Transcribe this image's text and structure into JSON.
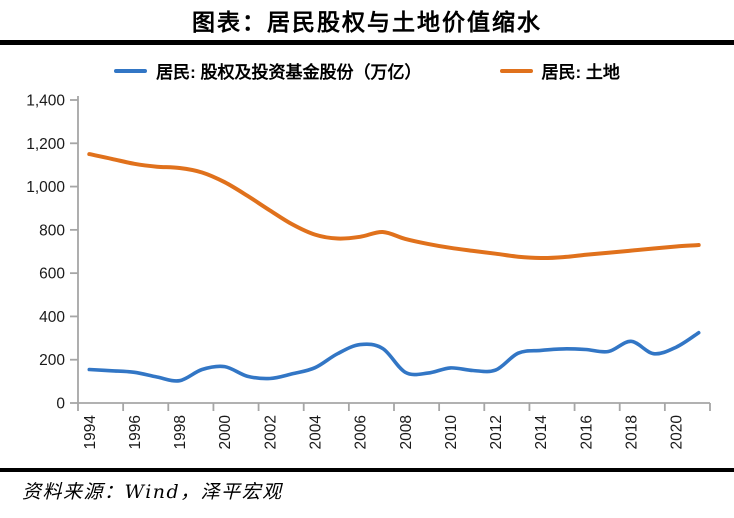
{
  "title": "图表：居民股权与土地价值缩水",
  "source": "资料来源：Wind，泽平宏观",
  "legend": [
    {
      "label": "居民: 股权及投资基金股份（万亿）",
      "color": "#3276C5"
    },
    {
      "label": "居民: 土地",
      "color": "#E0711C"
    }
  ],
  "colors": {
    "equity_line": "#3276C5",
    "land_line": "#E0711C",
    "axis": "#A6A6A6",
    "tick_text": "#1A1A1A",
    "divider": "#000000"
  },
  "chart_data": {
    "type": "line",
    "smoothed": true,
    "grid": false,
    "legend_position": "top",
    "x": [
      1994,
      1995,
      1996,
      1997,
      1998,
      1999,
      2000,
      2001,
      2002,
      2003,
      2004,
      2005,
      2006,
      2007,
      2008,
      2009,
      2010,
      2011,
      2012,
      2013,
      2014,
      2015,
      2016,
      2017,
      2018,
      2019,
      2020,
      2021
    ],
    "series": [
      {
        "name": "居民: 股权及投资基金股份（万亿）",
        "color": "#3276C5",
        "values": [
          155,
          149,
          142,
          120,
          103,
          155,
          168,
          124,
          113,
          135,
          163,
          228,
          270,
          252,
          142,
          138,
          162,
          150,
          152,
          230,
          243,
          250,
          247,
          238,
          285,
          228,
          258,
          325
        ]
      },
      {
        "name": "居民: 土地",
        "color": "#E0711C",
        "values": [
          1150,
          1128,
          1105,
          1092,
          1086,
          1065,
          1020,
          958,
          890,
          825,
          778,
          760,
          768,
          790,
          758,
          735,
          717,
          703,
          690,
          676,
          670,
          674,
          685,
          694,
          704,
          714,
          723,
          730
        ]
      }
    ],
    "ylim": [
      0,
      1400
    ],
    "y_ticks": [
      0,
      200,
      400,
      600,
      800,
      1000,
      1200,
      1400
    ],
    "y_tick_labels": [
      "0",
      "200",
      "400",
      "600",
      "800",
      "1,000",
      "1,200",
      "1,400"
    ],
    "x_tick_labels": [
      "1994",
      "1996",
      "1998",
      "2000",
      "2002",
      "2004",
      "2006",
      "2008",
      "2010",
      "2012",
      "2014",
      "2016",
      "2018",
      "2020"
    ],
    "xlabel": "",
    "ylabel": ""
  }
}
